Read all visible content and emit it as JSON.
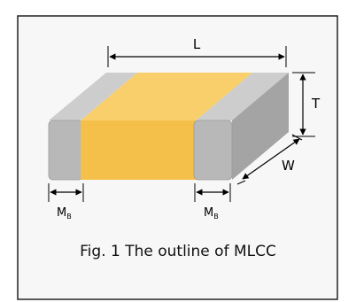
{
  "figure": {
    "caption": "Fig. 1 The outline of MLCC"
  },
  "dimensions": {
    "length": "L",
    "thickness": "T",
    "width": "W",
    "termination_left": {
      "main": "M",
      "sub": "B"
    },
    "termination_right": {
      "main": "M",
      "sub": "B"
    }
  },
  "colors": {
    "frame_border": "#222222",
    "background": "#f7f7f7",
    "electrode_front": "#b8b8b8",
    "electrode_top": "#cdcdcd",
    "electrode_side": "#a4a4a4",
    "ceramic_front": "#f5c04a",
    "ceramic_top": "#f9cf6b"
  }
}
